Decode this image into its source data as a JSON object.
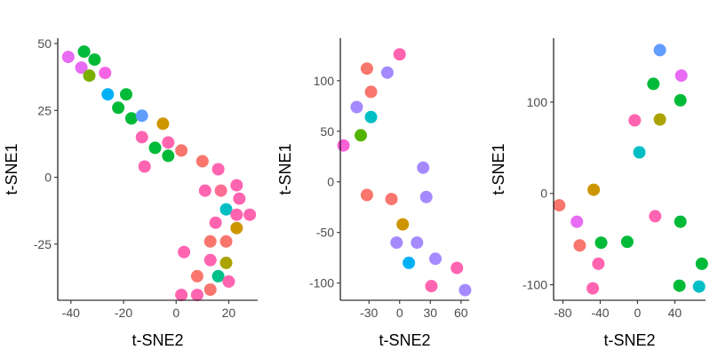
{
  "chart_data": [
    {
      "type": "scatter",
      "xlabel": "t-SNE2",
      "ylabel": "t-SNE1",
      "xlim": [
        -45,
        31
      ],
      "ylim": [
        -46,
        52
      ],
      "xticks": [
        -40,
        -20,
        0,
        20
      ],
      "yticks": [
        -25,
        0,
        25,
        50
      ],
      "points": [
        {
          "x": -41,
          "y": 45,
          "color": "#E76BF3"
        },
        {
          "x": -36,
          "y": 41,
          "color": "#E76BF3"
        },
        {
          "x": -35,
          "y": 47,
          "color": "#00BA38"
        },
        {
          "x": -31,
          "y": 44,
          "color": "#00BA38"
        },
        {
          "x": -33,
          "y": 38,
          "color": "#7CAE00"
        },
        {
          "x": -27,
          "y": 39,
          "color": "#F564E3"
        },
        {
          "x": -26,
          "y": 31,
          "color": "#00B0F6"
        },
        {
          "x": -19,
          "y": 31,
          "color": "#00BA38"
        },
        {
          "x": -22,
          "y": 26,
          "color": "#00BA38"
        },
        {
          "x": -17,
          "y": 22,
          "color": "#00BA38"
        },
        {
          "x": -13,
          "y": 23,
          "color": "#619CFF"
        },
        {
          "x": -5,
          "y": 20,
          "color": "#CD9600"
        },
        {
          "x": -13,
          "y": 15,
          "color": "#FF64B0"
        },
        {
          "x": -8,
          "y": 11,
          "color": "#00BA38"
        },
        {
          "x": -3,
          "y": 13,
          "color": "#FF64B0"
        },
        {
          "x": 2,
          "y": 10,
          "color": "#F8766D"
        },
        {
          "x": -3,
          "y": 8,
          "color": "#00BA38"
        },
        {
          "x": -12,
          "y": 4,
          "color": "#FF64B0"
        },
        {
          "x": 10,
          "y": 6,
          "color": "#F8766D"
        },
        {
          "x": 16,
          "y": 3,
          "color": "#FF64B0"
        },
        {
          "x": 11,
          "y": -5,
          "color": "#FF64B0"
        },
        {
          "x": 17,
          "y": -5,
          "color": "#FF6C91"
        },
        {
          "x": 23,
          "y": -3,
          "color": "#FF64B0"
        },
        {
          "x": 24,
          "y": -8,
          "color": "#FF64B0"
        },
        {
          "x": 19,
          "y": -12,
          "color": "#00BFC4"
        },
        {
          "x": 23,
          "y": -14,
          "color": "#FF64B0"
        },
        {
          "x": 28,
          "y": -14,
          "color": "#FF64B0"
        },
        {
          "x": 15,
          "y": -17,
          "color": "#FF64B0"
        },
        {
          "x": 23,
          "y": -19,
          "color": "#CD9600"
        },
        {
          "x": 13,
          "y": -24,
          "color": "#F8766D"
        },
        {
          "x": 19,
          "y": -24,
          "color": "#F8766D"
        },
        {
          "x": 3,
          "y": -28,
          "color": "#FF64B0"
        },
        {
          "x": 13,
          "y": -31,
          "color": "#FF64B0"
        },
        {
          "x": 19,
          "y": -32,
          "color": "#ABA300"
        },
        {
          "x": 8,
          "y": -37,
          "color": "#F8766D"
        },
        {
          "x": 16,
          "y": -37,
          "color": "#00C08B"
        },
        {
          "x": 20,
          "y": -39,
          "color": "#FF64B0"
        },
        {
          "x": 13,
          "y": -42,
          "color": "#F8766D"
        },
        {
          "x": 2,
          "y": -44,
          "color": "#FF64B0"
        },
        {
          "x": 8,
          "y": -44,
          "color": "#FF64B0"
        }
      ]
    },
    {
      "type": "scatter",
      "xlabel": "t-SNE2",
      "ylabel": "t-SNE1",
      "xlim": [
        -58,
        68
      ],
      "ylim": [
        -117,
        142
      ],
      "xticks": [
        -30,
        0,
        30,
        60
      ],
      "yticks": [
        -100,
        -50,
        0,
        50,
        100
      ],
      "points": [
        {
          "x": 0,
          "y": 126,
          "color": "#FF64B0"
        },
        {
          "x": -32,
          "y": 112,
          "color": "#F8766D"
        },
        {
          "x": -12,
          "y": 108,
          "color": "#A58AFF"
        },
        {
          "x": -28,
          "y": 89,
          "color": "#F8766D"
        },
        {
          "x": -42,
          "y": 74,
          "color": "#A58AFF"
        },
        {
          "x": -28,
          "y": 64,
          "color": "#00BFC4"
        },
        {
          "x": -38,
          "y": 46,
          "color": "#53B400"
        },
        {
          "x": -55,
          "y": 36,
          "color": "#FB61D7"
        },
        {
          "x": 23,
          "y": 14,
          "color": "#A58AFF"
        },
        {
          "x": 26,
          "y": -15,
          "color": "#A58AFF"
        },
        {
          "x": -32,
          "y": -13,
          "color": "#F8766D"
        },
        {
          "x": -8,
          "y": -17,
          "color": "#F8766D"
        },
        {
          "x": 3,
          "y": -42,
          "color": "#CD9600"
        },
        {
          "x": -3,
          "y": -60,
          "color": "#A58AFF"
        },
        {
          "x": 17,
          "y": -60,
          "color": "#A58AFF"
        },
        {
          "x": 35,
          "y": -76,
          "color": "#A58AFF"
        },
        {
          "x": 9,
          "y": -80,
          "color": "#00B0F6"
        },
        {
          "x": 56,
          "y": -85,
          "color": "#FF64B0"
        },
        {
          "x": 31,
          "y": -103,
          "color": "#FF64B0"
        },
        {
          "x": 64,
          "y": -107,
          "color": "#A58AFF"
        }
      ]
    },
    {
      "type": "scatter",
      "xlabel": "t-SNE2",
      "ylabel": "t-SNE1",
      "xlim": [
        -90,
        73
      ],
      "ylim": [
        -117,
        170
      ],
      "xticks": [
        -80,
        -40,
        0,
        40
      ],
      "yticks": [
        -100,
        0,
        100
      ],
      "points": [
        {
          "x": 24,
          "y": 157,
          "color": "#619CFF"
        },
        {
          "x": 47,
          "y": 129,
          "color": "#E76BF3"
        },
        {
          "x": 17,
          "y": 120,
          "color": "#00BA38"
        },
        {
          "x": 46,
          "y": 102,
          "color": "#00BA38"
        },
        {
          "x": -3,
          "y": 80,
          "color": "#FF64B0"
        },
        {
          "x": 24,
          "y": 81,
          "color": "#ABA300"
        },
        {
          "x": 2,
          "y": 45,
          "color": "#00BFC4"
        },
        {
          "x": -47,
          "y": 4,
          "color": "#CD9600"
        },
        {
          "x": -84,
          "y": -13,
          "color": "#F8766D"
        },
        {
          "x": -65,
          "y": -31,
          "color": "#E76BF3"
        },
        {
          "x": 19,
          "y": -25,
          "color": "#FF64B0"
        },
        {
          "x": 46,
          "y": -31,
          "color": "#00BA38"
        },
        {
          "x": -62,
          "y": -57,
          "color": "#F8766D"
        },
        {
          "x": -39,
          "y": -54,
          "color": "#00BA38"
        },
        {
          "x": -11,
          "y": -53,
          "color": "#00BA38"
        },
        {
          "x": -42,
          "y": -77,
          "color": "#FF64B0"
        },
        {
          "x": 69,
          "y": -77,
          "color": "#00BA38"
        },
        {
          "x": -48,
          "y": -104,
          "color": "#FF64B0"
        },
        {
          "x": 45,
          "y": -101,
          "color": "#00BA38"
        },
        {
          "x": 66,
          "y": -102,
          "color": "#00BFC4"
        }
      ]
    }
  ]
}
